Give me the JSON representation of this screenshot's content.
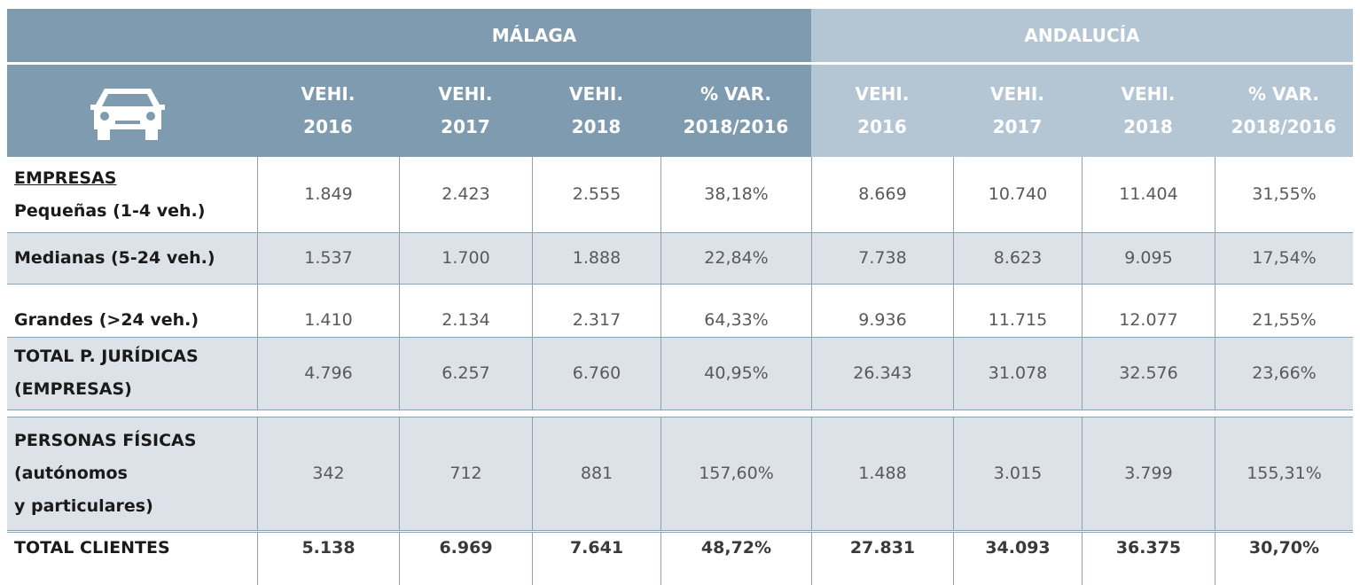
{
  "table": {
    "groups": [
      "MÁLAGA",
      "ANDALUCÍA"
    ],
    "columns": [
      [
        "VEHI.",
        "2016"
      ],
      [
        "VEHI.",
        "2017"
      ],
      [
        "VEHI.",
        "2018"
      ],
      [
        "% VAR.",
        "2018/2016"
      ],
      [
        "VEHI.",
        "2016"
      ],
      [
        "VEHI.",
        "2017"
      ],
      [
        "VEHI.",
        "2018"
      ],
      [
        "% VAR.",
        "2018/2016"
      ]
    ],
    "rows": [
      {
        "section": "EMPRESAS",
        "label": [
          "Pequeñas (1-4 veh.)"
        ],
        "values": [
          "1.849",
          "2.423",
          "2.555",
          "38,18%",
          "8.669",
          "10.740",
          "11.404",
          "31,55%"
        ]
      },
      {
        "label": [
          "Medianas (5-24 veh.)"
        ],
        "values": [
          "1.537",
          "1.700",
          "1.888",
          "22,84%",
          "7.738",
          "8.623",
          "9.095",
          "17,54%"
        ]
      },
      {
        "label": [
          "Grandes (>24 veh.)"
        ],
        "values": [
          "1.410",
          "2.134",
          "2.317",
          "64,33%",
          "9.936",
          "11.715",
          "12.077",
          "21,55%"
        ]
      },
      {
        "label": [
          "TOTAL P. JURÍDICAS",
          "(EMPRESAS)"
        ],
        "values": [
          "4.796",
          "6.257",
          "6.760",
          "40,95%",
          "26.343",
          "31.078",
          "32.576",
          "23,66%"
        ]
      },
      {
        "label": [
          "PERSONAS FÍSICAS",
          "(autónomos",
          "y particulares)"
        ],
        "values": [
          "342",
          "712",
          "881",
          "157,60%",
          "1.488",
          "3.015",
          "3.799",
          "155,31%"
        ]
      },
      {
        "label": [
          "TOTAL CLIENTES"
        ],
        "values": [
          "5.138",
          "6.969",
          "7.641",
          "48,72%",
          "27.831",
          "34.093",
          "36.375",
          "30,70%"
        ]
      }
    ]
  }
}
